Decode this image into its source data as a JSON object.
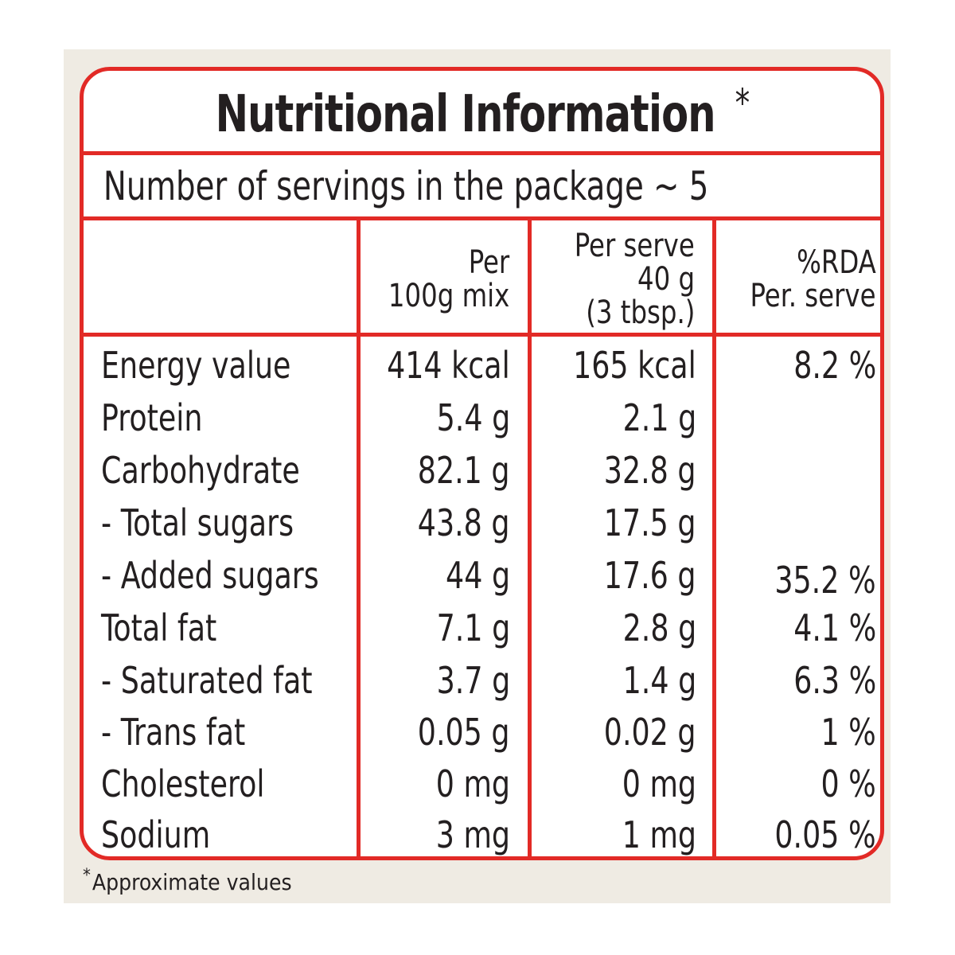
{
  "title": "Nutritional Information",
  "title_mark": "*",
  "servings_text": "Number of servings in the package ~ 5",
  "headers": {
    "col1": [
      "Per",
      "100g mix"
    ],
    "col2": [
      "Per serve",
      "40 g",
      "(3 tbsp.)"
    ],
    "col3": [
      "%RDA",
      "Per. serve"
    ]
  },
  "rows": [
    {
      "name": "Energy value",
      "per100": "414 kcal",
      "perServe": "165 kcal",
      "rda": "8.2 %"
    },
    {
      "name": "Protein",
      "per100": "5.4 g",
      "perServe": "2.1 g",
      "rda": ""
    },
    {
      "name": "Carbohydrate",
      "per100": "82.1 g",
      "perServe": "32.8 g",
      "rda": ""
    },
    {
      "name": "- Total sugars",
      "per100": "43.8 g",
      "perServe": "17.5 g",
      "rda": ""
    },
    {
      "name": "- Added sugars",
      "per100": "44 g",
      "perServe": "17.6 g",
      "rda": "35.2 %"
    },
    {
      "name": "Total fat",
      "per100": "7.1 g",
      "perServe": "2.8 g",
      "rda": "4.1 %"
    },
    {
      "name": "- Saturated fat",
      "per100": "3.7 g",
      "perServe": "1.4 g",
      "rda": "6.3 %"
    },
    {
      "name": "- Trans fat",
      "per100": "0.05 g",
      "perServe": "0.02 g",
      "rda": "1 %"
    },
    {
      "name": "Cholesterol",
      "per100": "0 mg",
      "perServe": "0 mg",
      "rda": "0 %"
    },
    {
      "name": "Sodium",
      "per100": "3 mg",
      "perServe": "1 mg",
      "rda": "0.05 %"
    }
  ],
  "footnote": {
    "mark": "*",
    "text": "Approximate values"
  },
  "colors": {
    "border": "#e22a26",
    "background": "#efebe3",
    "text": "#231f20"
  }
}
